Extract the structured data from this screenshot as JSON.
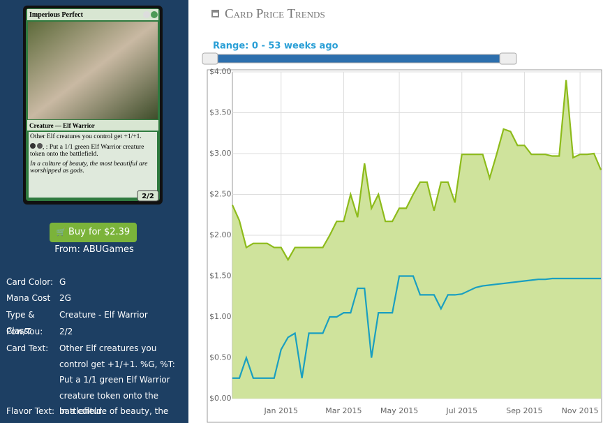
{
  "card": {
    "name": "Imperious Perfect",
    "type_line": "Creature — Elf Warrior",
    "rules": [
      "Other Elf creatures you control get +1/+1.",
      ", : Put a 1/1 green Elf Warrior creature token onto the battlefield."
    ],
    "flavor": "In a culture of beauty, the most beautiful are worshipped as gods.",
    "pt": "2/2"
  },
  "buy": {
    "button": "Buy for $2.39",
    "source": "From: ABUGames"
  },
  "details": [
    {
      "label": "Card Color:",
      "value": "G"
    },
    {
      "label": "Mana Cost",
      "value": "2G"
    },
    {
      "label": "Type & Class:",
      "value": "Creature - Elf Warrior"
    },
    {
      "label": "Pow/Tou:",
      "value": "2/2"
    },
    {
      "label": "Card Text:",
      "value": "Other Elf creatures you control get +1/+1. %G, %T: Put a 1/1 green Elf Warrior creature token onto the battlefield."
    },
    {
      "label": "Flavor Text:",
      "value": "In a culture of beauty, the most"
    }
  ],
  "chart_data": {
    "type": "line",
    "title": "Card Price Trends",
    "range_label": "Range: 0 - 53 weeks ago",
    "categories": [
      null,
      null,
      null,
      null,
      null,
      null,
      null,
      "Jan 2015",
      null,
      null,
      null,
      null,
      null,
      null,
      null,
      null,
      "Mar 2015",
      null,
      null,
      null,
      null,
      null,
      null,
      null,
      "May 2015",
      null,
      null,
      null,
      null,
      null,
      null,
      null,
      null,
      "Jul 2015",
      null,
      null,
      null,
      null,
      null,
      null,
      null,
      null,
      "Sep 2015",
      null,
      null,
      null,
      null,
      null,
      null,
      null,
      "Nov 2015",
      null,
      null,
      null
    ],
    "series": [
      {
        "color": "#8dbb1a",
        "fill": "#cfe39c",
        "values": [
          2.37,
          2.18,
          1.85,
          1.9,
          1.9,
          1.9,
          1.85,
          1.85,
          1.7,
          1.85,
          1.85,
          1.85,
          1.85,
          1.85,
          2.0,
          2.17,
          2.17,
          2.5,
          2.22,
          2.88,
          2.33,
          2.5,
          2.17,
          2.17,
          2.33,
          2.33,
          2.5,
          2.65,
          2.65,
          2.3,
          2.65,
          2.65,
          2.4,
          2.99,
          2.99,
          2.99,
          2.99,
          2.7,
          2.99,
          3.3,
          3.27,
          3.1,
          3.1,
          2.99,
          2.99,
          2.99,
          2.97,
          2.97,
          3.9,
          2.95,
          2.99,
          2.99,
          3.0,
          2.8
        ]
      },
      {
        "color": "#1a9fc0",
        "values": [
          0.25,
          0.25,
          0.5,
          0.25,
          0.25,
          0.25,
          0.25,
          0.6,
          0.75,
          0.8,
          0.25,
          0.8,
          0.8,
          0.8,
          1.0,
          1.0,
          1.05,
          1.05,
          1.35,
          1.35,
          0.5,
          1.05,
          1.05,
          1.05,
          1.5,
          1.5,
          1.5,
          1.27,
          1.27,
          1.27,
          1.1,
          1.27,
          1.27,
          1.28,
          1.32,
          1.36,
          1.38,
          1.39,
          1.4,
          1.41,
          1.42,
          1.43,
          1.44,
          1.45,
          1.46,
          1.46,
          1.47,
          1.47,
          1.47,
          1.47,
          1.47,
          1.47,
          1.47,
          1.47
        ]
      }
    ],
    "ylim": [
      0,
      4
    ],
    "yticks": [
      {
        "value": 0,
        "label": "$0.00"
      },
      {
        "value": 0.5,
        "label": "$0.50"
      },
      {
        "value": 1,
        "label": "$1.00"
      },
      {
        "value": 1.5,
        "label": "$1.50"
      },
      {
        "value": 2,
        "label": "$2.00"
      },
      {
        "value": 2.5,
        "label": "$2.50"
      },
      {
        "value": 3,
        "label": "$3.00"
      },
      {
        "value": 3.5,
        "label": "$3.50"
      },
      {
        "value": 4,
        "label": "$4.00"
      }
    ],
    "grid": true
  }
}
